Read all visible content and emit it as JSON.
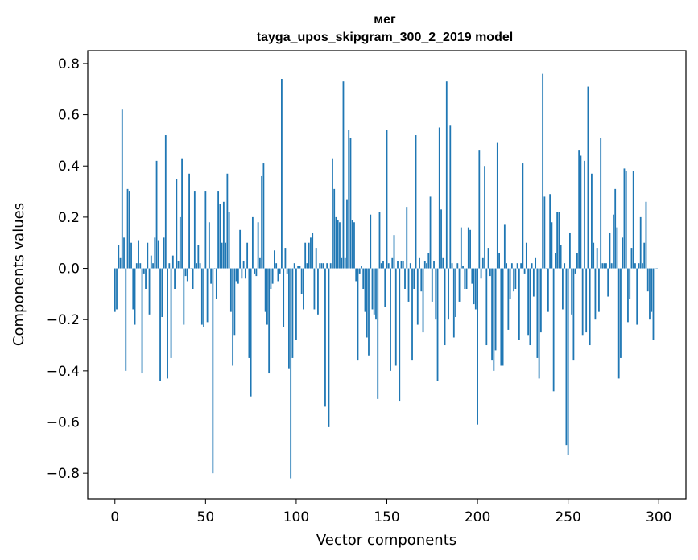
{
  "chart_data": {
    "type": "bar",
    "title": "мег",
    "subtitle": "tayga_upos_skipgram_300_2_2019 model",
    "xlabel": "Vector components",
    "ylabel": "Components values",
    "xlim": [
      -15,
      315
    ],
    "ylim": [
      -0.9,
      0.85
    ],
    "xticks": [
      0,
      50,
      100,
      150,
      200,
      250,
      300
    ],
    "xtick_labels": [
      "0",
      "50",
      "100",
      "150",
      "200",
      "250",
      "300"
    ],
    "yticks": [
      -0.8,
      -0.6,
      -0.4,
      -0.2,
      0.0,
      0.2,
      0.4,
      0.6,
      0.8
    ],
    "ytick_labels": [
      "−0.8",
      "−0.6",
      "−0.4",
      "−0.2",
      "0.0",
      "0.2",
      "0.4",
      "0.6",
      "0.8"
    ],
    "grid": false,
    "bar_color": "#1f77b4",
    "values": [
      -0.17,
      -0.16,
      0.09,
      0.04,
      0.62,
      0.12,
      -0.4,
      0.31,
      0.3,
      0.1,
      -0.16,
      -0.22,
      0.02,
      0.11,
      0.02,
      -0.41,
      -0.02,
      -0.08,
      0.1,
      -0.18,
      0.05,
      0.02,
      0.12,
      0.42,
      0.11,
      -0.44,
      -0.19,
      0.12,
      0.52,
      -0.43,
      0.02,
      -0.35,
      0.05,
      -0.08,
      0.35,
      0.03,
      0.2,
      0.43,
      -0.22,
      -0.03,
      -0.05,
      0.37,
      0.0,
      -0.08,
      0.3,
      0.02,
      0.09,
      0.02,
      -0.22,
      -0.23,
      0.3,
      -0.21,
      0.18,
      -0.06,
      -0.8,
      0.0,
      -0.12,
      0.3,
      0.25,
      0.1,
      0.26,
      0.1,
      0.37,
      0.22,
      -0.17,
      -0.38,
      -0.26,
      -0.05,
      -0.06,
      0.15,
      -0.04,
      0.03,
      -0.04,
      0.1,
      -0.35,
      -0.5,
      0.2,
      -0.02,
      -0.03,
      0.18,
      0.04,
      0.36,
      0.41,
      -0.17,
      -0.22,
      -0.41,
      -0.08,
      -0.06,
      0.07,
      0.02,
      -0.05,
      -0.02,
      0.74,
      -0.23,
      0.08,
      -0.02,
      -0.39,
      -0.82,
      -0.35,
      0.02,
      -0.28,
      0.01,
      0.01,
      -0.1,
      -0.16,
      0.1,
      0.02,
      0.1,
      0.12,
      0.14,
      -0.16,
      0.08,
      -0.18,
      0.02,
      0.02,
      0.02,
      -0.54,
      0.02,
      -0.62,
      0.02,
      0.43,
      0.31,
      0.2,
      0.19,
      0.18,
      0.04,
      0.73,
      0.04,
      0.27,
      0.54,
      0.51,
      0.19,
      0.18,
      -0.05,
      -0.36,
      -0.02,
      0.01,
      -0.08,
      -0.17,
      -0.27,
      -0.34,
      0.21,
      -0.16,
      -0.18,
      -0.2,
      -0.51,
      0.22,
      0.02,
      0.03,
      -0.15,
      0.54,
      0.02,
      -0.4,
      0.04,
      0.13,
      -0.38,
      0.03,
      -0.52,
      0.03,
      0.03,
      -0.08,
      0.24,
      -0.13,
      0.02,
      -0.36,
      -0.08,
      0.52,
      -0.22,
      0.04,
      -0.09,
      -0.25,
      0.03,
      0.02,
      0.06,
      0.28,
      -0.13,
      0.03,
      -0.2,
      -0.44,
      0.55,
      0.23,
      0.04,
      -0.3,
      0.73,
      -0.2,
      0.56,
      0.02,
      -0.27,
      -0.19,
      0.02,
      -0.13,
      0.16,
      0.01,
      -0.08,
      -0.08,
      0.16,
      0.15,
      -0.06,
      -0.14,
      -0.16,
      -0.61,
      0.46,
      -0.04,
      0.04,
      0.4,
      -0.3,
      0.08,
      -0.03,
      -0.36,
      -0.4,
      -0.32,
      0.49,
      0.06,
      -0.38,
      -0.38,
      0.17,
      0.02,
      -0.24,
      -0.12,
      0.02,
      -0.09,
      -0.08,
      0.02,
      -0.28,
      0.02,
      0.41,
      -0.02,
      0.1,
      -0.26,
      -0.3,
      0.02,
      -0.11,
      0.04,
      -0.35,
      -0.43,
      -0.25,
      0.76,
      0.28,
      0.0,
      -0.17,
      0.29,
      0.18,
      -0.48,
      0.06,
      0.22,
      0.22,
      0.09,
      -0.16,
      0.02,
      -0.69,
      -0.73,
      0.14,
      -0.18,
      -0.36,
      -0.02,
      0.06,
      0.46,
      0.44,
      -0.26,
      0.42,
      -0.25,
      0.71,
      -0.3,
      0.37,
      0.1,
      -0.2,
      0.08,
      -0.17,
      0.51,
      0.02,
      0.02,
      0.02,
      -0.11,
      0.14,
      0.02,
      0.21,
      0.31,
      0.16,
      -0.43,
      -0.35,
      0.12,
      0.39,
      0.38,
      -0.21,
      -0.12,
      0.08,
      0.38,
      0.02,
      -0.22,
      0.02,
      0.2,
      0.02,
      0.1,
      0.26,
      -0.09,
      -0.2,
      -0.17,
      -0.28,
      0.0,
      0.0
    ]
  }
}
